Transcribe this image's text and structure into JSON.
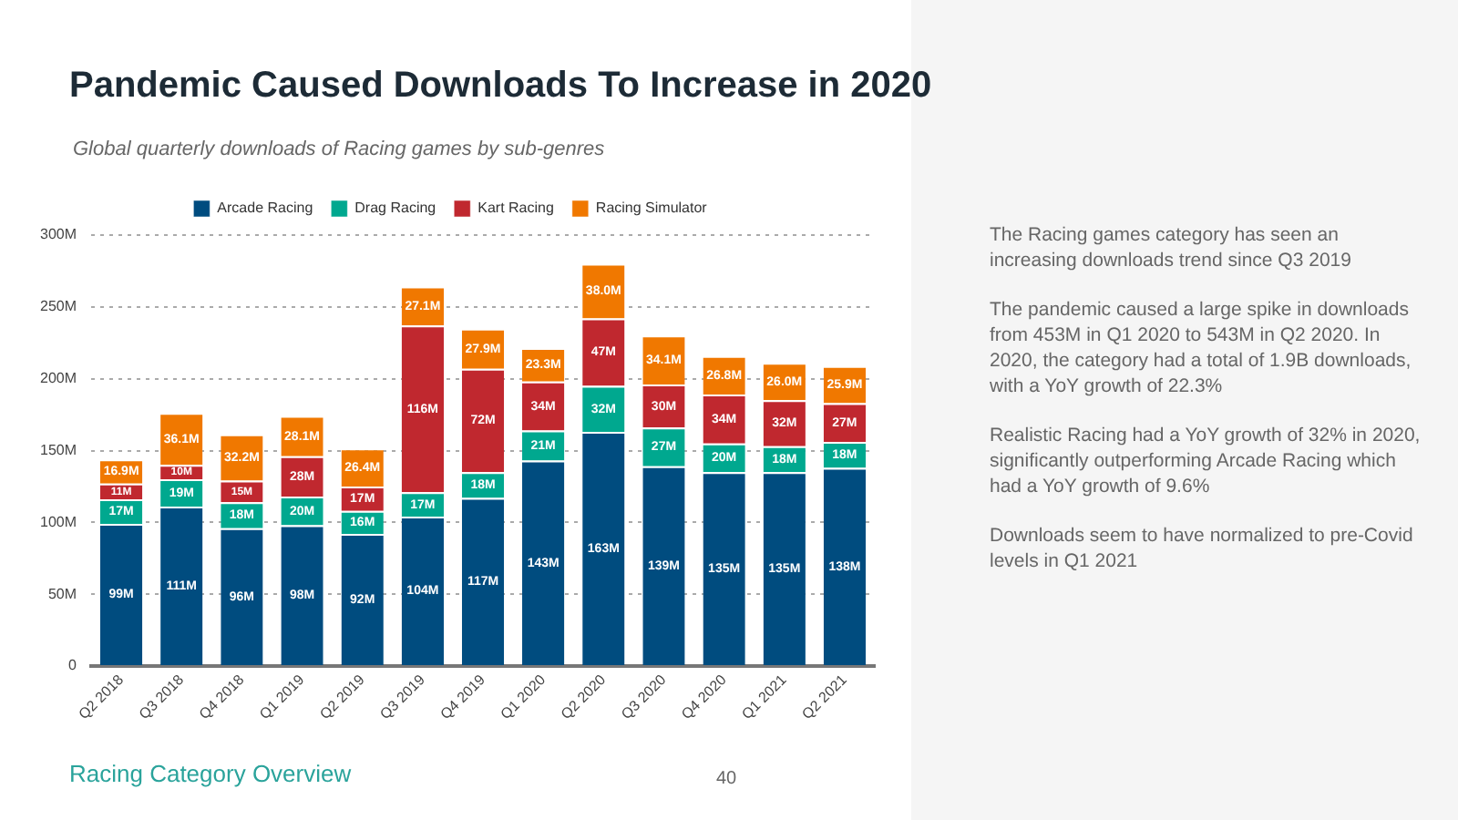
{
  "chart_data": {
    "type": "bar",
    "title": "Pandemic Caused Downloads To Increase in 2020",
    "subtitle": "Global quarterly downloads of Racing games by sub-genres",
    "categories": [
      "Q2 2018",
      "Q3 2018",
      "Q4 2018",
      "Q1 2019",
      "Q2 2019",
      "Q3 2019",
      "Q4 2019",
      "Q1 2020",
      "Q2 2020",
      "Q3 2020",
      "Q4 2020",
      "Q1 2021",
      "Q2 2021"
    ],
    "stacked": true,
    "legend": "top",
    "grid": "y",
    "ylim": [
      0,
      300
    ],
    "yticks": [
      0,
      {
        "value": 50,
        "label": "50M"
      },
      {
        "value": 100,
        "label": "100M"
      },
      {
        "value": 150,
        "label": "150M"
      },
      {
        "value": 200,
        "label": "200M"
      },
      {
        "value": 250,
        "label": "250M"
      },
      {
        "value": 300,
        "label": "300M"
      }
    ],
    "series": [
      {
        "name": "Arcade Racing",
        "color": "#004c7f",
        "values": [
          99,
          111,
          96,
          98,
          92,
          104,
          117,
          143,
          163,
          139,
          135,
          135,
          138
        ],
        "value_labels": [
          "99M",
          "111M",
          "96M",
          "98M",
          "92M",
          "104M",
          "117M",
          "143M",
          "163M",
          "139M",
          "135M",
          "135M",
          "138M"
        ]
      },
      {
        "name": "Drag Racing",
        "color": "#00a88f",
        "values": [
          17,
          19,
          18,
          20,
          16,
          17,
          18,
          21,
          32,
          27,
          20,
          18,
          18
        ],
        "value_labels": [
          "17M",
          "19M",
          "18M",
          "20M",
          "16M",
          "17M",
          "18M",
          "21M",
          "32M",
          "27M",
          "20M",
          "18M",
          "18M"
        ]
      },
      {
        "name": "Kart Racing",
        "color": "#c0282f",
        "values": [
          11,
          10,
          15,
          28,
          17,
          116,
          72,
          34,
          47,
          30,
          34,
          32,
          27
        ],
        "value_labels": [
          "11M",
          "10M",
          "15M",
          "28M",
          "17M",
          "116M",
          "72M",
          "34M",
          "47M",
          "30M",
          "34M",
          "32M",
          "27M"
        ]
      },
      {
        "name": "Racing Simulator",
        "color": "#f07800",
        "values": [
          16.9,
          36.1,
          32.2,
          28.1,
          26.4,
          27.1,
          27.9,
          23.3,
          38.0,
          34.1,
          26.8,
          26.0,
          25.9
        ],
        "value_labels": [
          "16.9M",
          "36.1M",
          "32.2M",
          "28.1M",
          "26.4M",
          "27.1M",
          "27.9M",
          "23.3M",
          "38.0M",
          "34.1M",
          "26.8M",
          "26.0M",
          "25.9M"
        ]
      }
    ],
    "annotations": [
      "The Racing games category has seen an increasing downloads trend since Q3 2019",
      "The pandemic caused a large spike in downloads from 453M in Q1 2020 to 543M in Q2 2020. In 2020, the category had a total of 1.9B downloads, with a YoY growth of 22.3%",
      "Realistic Racing had a YoY growth of 32% in 2020, significantly outperforming Arcade Racing which had a YoY growth of 9.6%",
      "Downloads seem to have normalized to pre-Covid levels in Q1 2021",
      "Racing Category Overview",
      "40"
    ]
  }
}
